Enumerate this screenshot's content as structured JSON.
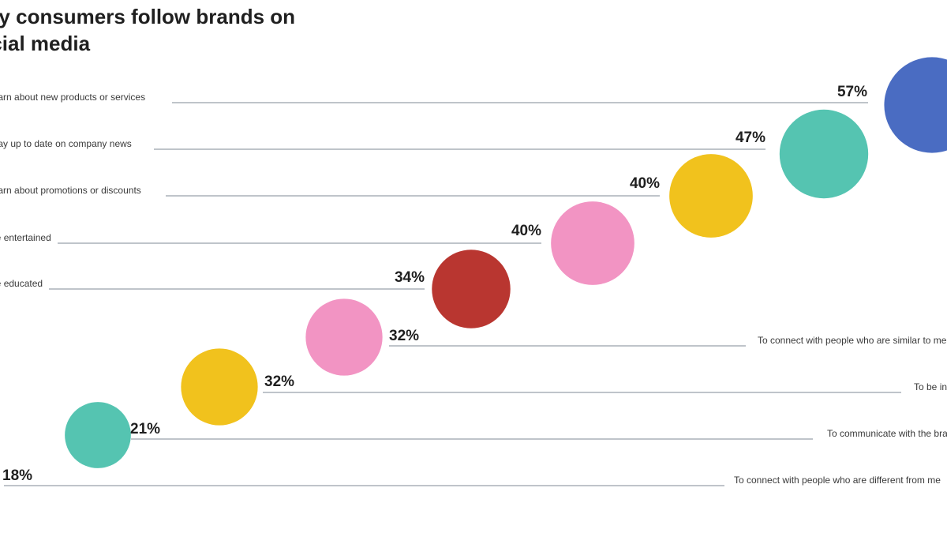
{
  "chart_data": {
    "type": "bubble",
    "title": "Why consumers follow brands on\nsocial media",
    "xlabel": "",
    "ylabel": "",
    "unit": "%",
    "colors": {
      "blue": "#4a6cc2",
      "teal": "#55c4b1",
      "yellow": "#f1c21d",
      "pink": "#f294c3",
      "red": "#b93630",
      "line": "#aab0b8",
      "text": "#1f1f1f"
    },
    "items": [
      {
        "label": "To learn about new products or services",
        "value": 57,
        "pct_text": "57%",
        "color": "blue",
        "side": "left"
      },
      {
        "label": "To stay up to date on company news",
        "value": 47,
        "pct_text": "47%",
        "color": "teal",
        "side": "left"
      },
      {
        "label": "To learn about promotions or discounts",
        "value": 40,
        "pct_text": "40%",
        "color": "yellow",
        "side": "left"
      },
      {
        "label": "To be entertained",
        "value": 40,
        "pct_text": "40%",
        "color": "pink",
        "side": "left"
      },
      {
        "label": "To be educated",
        "value": 34,
        "pct_text": "34%",
        "color": "red",
        "side": "left"
      },
      {
        "label": "To connect with people who are similar to me",
        "value": 32,
        "pct_text": "32%",
        "color": "pink",
        "side": "right"
      },
      {
        "label": "To be inspired",
        "value": 32,
        "pct_text": "32%",
        "color": "yellow",
        "side": "right"
      },
      {
        "label": "To communicate with the brand",
        "value": 21,
        "pct_text": "21%",
        "color": "teal",
        "side": "right"
      },
      {
        "label": "To connect with people who are different from me",
        "value": 18,
        "pct_text": "18%",
        "color": "blue",
        "side": "right"
      }
    ]
  }
}
